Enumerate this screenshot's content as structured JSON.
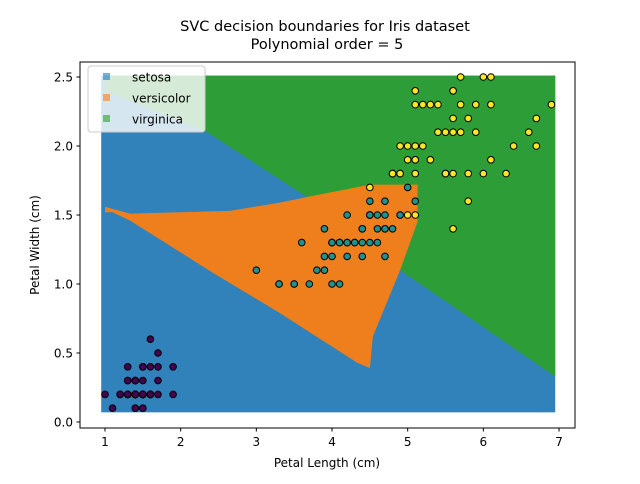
{
  "chart_data": {
    "type": "scatter",
    "title": "SVC decision boundaries for Iris dataset",
    "subtitle": "Polynomial order = 5",
    "xlabel": "Petal Length (cm)",
    "ylabel": "Petal Width (cm)",
    "xlim": [
      0.67,
      7.23
    ],
    "ylim": [
      -0.04,
      2.64
    ],
    "xticks": [
      1,
      2,
      3,
      4,
      5,
      6,
      7
    ],
    "xtick_labels": [
      "1",
      "2",
      "3",
      "4",
      "5",
      "6",
      "7"
    ],
    "yticks": [
      0.0,
      0.5,
      1.0,
      1.5,
      2.0,
      2.5
    ],
    "ytick_labels": [
      "0.0",
      "0.5",
      "1.0",
      "1.5",
      "2.0",
      "2.5"
    ],
    "grid": false,
    "legend_position": "top-left",
    "mesh_range": {
      "x": [
        0.95,
        6.95
      ],
      "y": [
        0.07,
        2.51
      ]
    },
    "regions": [
      {
        "name": "setosa",
        "color": "#1f77b4",
        "polygon": "full"
      },
      {
        "name": "virginica",
        "color": "#2ca02c",
        "polygon": [
          [
            1.0,
            2.51
          ],
          [
            6.95,
            2.51
          ],
          [
            6.95,
            0.33
          ],
          [
            4.9,
            1.1
          ],
          [
            5.13,
            1.45
          ],
          [
            5.13,
            1.72
          ],
          [
            3.67,
            1.63
          ],
          [
            2.35,
            2.1
          ],
          [
            1.0,
            2.4
          ]
        ]
      },
      {
        "name": "versicolor",
        "color": "#ff7f0e",
        "polygon": [
          [
            1.0,
            1.56
          ],
          [
            1.33,
            1.51
          ],
          [
            2.65,
            1.53
          ],
          [
            3.31,
            1.59
          ],
          [
            3.67,
            1.63
          ],
          [
            4.5,
            1.72
          ],
          [
            5.13,
            1.72
          ],
          [
            5.13,
            1.45
          ],
          [
            4.9,
            1.1
          ],
          [
            4.54,
            0.62
          ],
          [
            4.5,
            0.39
          ],
          [
            4.33,
            0.43
          ],
          [
            3.31,
            0.79
          ],
          [
            2.43,
            1.08
          ],
          [
            1.33,
            1.46
          ],
          [
            1.1,
            1.52
          ],
          [
            1.0,
            1.52
          ]
        ]
      }
    ],
    "series": [
      {
        "class": "setosa",
        "color": "#440154",
        "points": [
          [
            1.4,
            0.2
          ],
          [
            1.4,
            0.2
          ],
          [
            1.3,
            0.2
          ],
          [
            1.5,
            0.2
          ],
          [
            1.4,
            0.2
          ],
          [
            1.7,
            0.4
          ],
          [
            1.4,
            0.3
          ],
          [
            1.5,
            0.2
          ],
          [
            1.4,
            0.2
          ],
          [
            1.5,
            0.1
          ],
          [
            1.5,
            0.2
          ],
          [
            1.6,
            0.2
          ],
          [
            1.4,
            0.1
          ],
          [
            1.1,
            0.1
          ],
          [
            1.2,
            0.2
          ],
          [
            1.5,
            0.4
          ],
          [
            1.3,
            0.4
          ],
          [
            1.4,
            0.3
          ],
          [
            1.7,
            0.3
          ],
          [
            1.5,
            0.3
          ],
          [
            1.7,
            0.2
          ],
          [
            1.5,
            0.4
          ],
          [
            1.0,
            0.2
          ],
          [
            1.7,
            0.5
          ],
          [
            1.9,
            0.2
          ],
          [
            1.6,
            0.2
          ],
          [
            1.6,
            0.4
          ],
          [
            1.5,
            0.2
          ],
          [
            1.4,
            0.2
          ],
          [
            1.6,
            0.2
          ],
          [
            1.6,
            0.2
          ],
          [
            1.5,
            0.4
          ],
          [
            1.5,
            0.1
          ],
          [
            1.4,
            0.2
          ],
          [
            1.5,
            0.2
          ],
          [
            1.2,
            0.2
          ],
          [
            1.3,
            0.2
          ],
          [
            1.4,
            0.1
          ],
          [
            1.3,
            0.2
          ],
          [
            1.5,
            0.2
          ],
          [
            1.3,
            0.3
          ],
          [
            1.3,
            0.3
          ],
          [
            1.3,
            0.2
          ],
          [
            1.6,
            0.6
          ],
          [
            1.9,
            0.4
          ],
          [
            1.4,
            0.3
          ],
          [
            1.6,
            0.2
          ],
          [
            1.4,
            0.2
          ],
          [
            1.5,
            0.2
          ],
          [
            1.4,
            0.2
          ]
        ]
      },
      {
        "class": "versicolor",
        "color": "#21918c",
        "points": [
          [
            4.7,
            1.4
          ],
          [
            4.5,
            1.5
          ],
          [
            4.9,
            1.5
          ],
          [
            4.0,
            1.3
          ],
          [
            4.6,
            1.5
          ],
          [
            4.5,
            1.3
          ],
          [
            4.7,
            1.6
          ],
          [
            3.3,
            1.0
          ],
          [
            4.6,
            1.3
          ],
          [
            3.9,
            1.4
          ],
          [
            3.5,
            1.0
          ],
          [
            4.2,
            1.5
          ],
          [
            4.0,
            1.0
          ],
          [
            4.7,
            1.4
          ],
          [
            3.6,
            1.3
          ],
          [
            4.4,
            1.4
          ],
          [
            4.5,
            1.5
          ],
          [
            4.1,
            1.0
          ],
          [
            4.5,
            1.5
          ],
          [
            3.9,
            1.1
          ],
          [
            4.8,
            1.8
          ],
          [
            4.0,
            1.3
          ],
          [
            4.9,
            1.5
          ],
          [
            4.7,
            1.2
          ],
          [
            4.3,
            1.3
          ],
          [
            4.4,
            1.4
          ],
          [
            4.8,
            1.4
          ],
          [
            5.0,
            1.7
          ],
          [
            4.5,
            1.5
          ],
          [
            3.5,
            1.0
          ],
          [
            3.8,
            1.1
          ],
          [
            3.7,
            1.0
          ],
          [
            3.9,
            1.2
          ],
          [
            5.1,
            1.6
          ],
          [
            4.5,
            1.5
          ],
          [
            4.5,
            1.6
          ],
          [
            4.7,
            1.5
          ],
          [
            4.4,
            1.3
          ],
          [
            4.1,
            1.3
          ],
          [
            4.0,
            1.3
          ],
          [
            4.4,
            1.2
          ],
          [
            4.6,
            1.4
          ],
          [
            4.0,
            1.2
          ],
          [
            3.3,
            1.0
          ],
          [
            4.2,
            1.3
          ],
          [
            4.2,
            1.2
          ],
          [
            4.2,
            1.3
          ],
          [
            4.3,
            1.3
          ],
          [
            3.0,
            1.1
          ],
          [
            4.1,
            1.3
          ]
        ]
      },
      {
        "class": "virginica",
        "color": "#fde725",
        "points": [
          [
            6.0,
            2.5
          ],
          [
            5.1,
            1.9
          ],
          [
            5.9,
            2.1
          ],
          [
            5.6,
            1.8
          ],
          [
            5.8,
            2.2
          ],
          [
            6.6,
            2.1
          ],
          [
            4.5,
            1.7
          ],
          [
            6.3,
            1.8
          ],
          [
            5.8,
            1.8
          ],
          [
            6.1,
            2.5
          ],
          [
            5.1,
            2.0
          ],
          [
            5.3,
            1.9
          ],
          [
            5.5,
            2.1
          ],
          [
            5.0,
            2.0
          ],
          [
            5.1,
            2.4
          ],
          [
            5.3,
            2.3
          ],
          [
            5.5,
            1.8
          ],
          [
            6.7,
            2.2
          ],
          [
            6.9,
            2.3
          ],
          [
            5.0,
            1.5
          ],
          [
            5.7,
            2.3
          ],
          [
            4.9,
            2.0
          ],
          [
            6.7,
            2.0
          ],
          [
            4.9,
            1.8
          ],
          [
            5.7,
            2.1
          ],
          [
            6.0,
            1.8
          ],
          [
            4.8,
            1.8
          ],
          [
            4.9,
            1.8
          ],
          [
            5.6,
            2.1
          ],
          [
            5.8,
            1.6
          ],
          [
            6.1,
            1.9
          ],
          [
            6.4,
            2.0
          ],
          [
            5.6,
            2.2
          ],
          [
            5.1,
            1.5
          ],
          [
            5.6,
            1.4
          ],
          [
            6.1,
            2.3
          ],
          [
            5.6,
            2.4
          ],
          [
            5.5,
            1.8
          ],
          [
            4.8,
            1.8
          ],
          [
            5.4,
            2.1
          ],
          [
            5.6,
            2.4
          ],
          [
            5.1,
            2.3
          ],
          [
            5.1,
            1.9
          ],
          [
            5.9,
            2.3
          ],
          [
            5.7,
            2.5
          ],
          [
            5.2,
            2.3
          ],
          [
            5.0,
            1.9
          ],
          [
            5.2,
            2.0
          ],
          [
            5.4,
            2.3
          ],
          [
            5.1,
            1.8
          ]
        ]
      }
    ],
    "legend": [
      {
        "label": "setosa",
        "color": "#1f77b4"
      },
      {
        "label": "versicolor",
        "color": "#ff7f0e"
      },
      {
        "label": "virginica",
        "color": "#2ca02c"
      }
    ]
  }
}
